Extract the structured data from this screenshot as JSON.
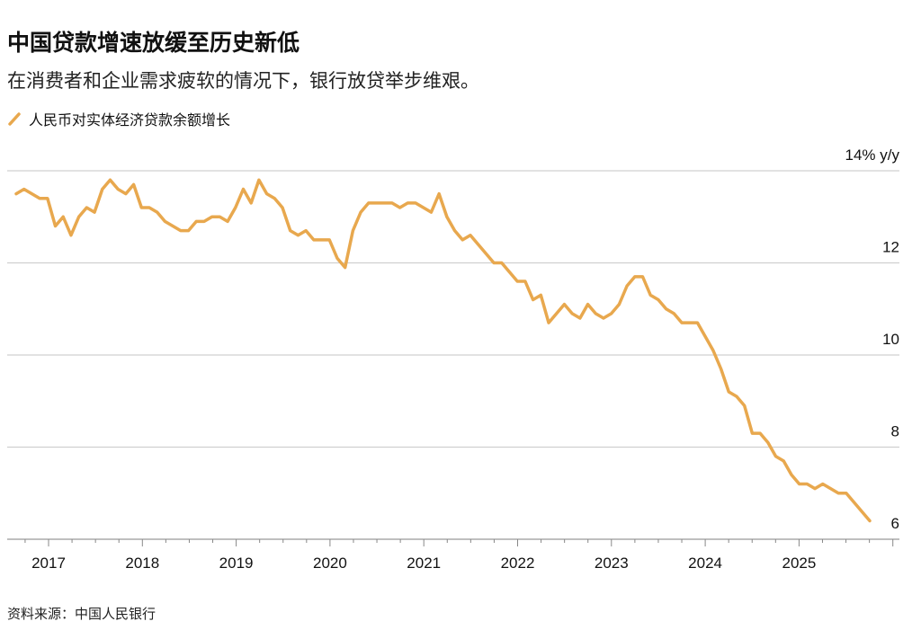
{
  "header": {
    "title": "中国贷款增速放缓至历史新低",
    "subtitle": "在消费者和企业需求疲软的情况下，银行放贷举步维艰。"
  },
  "source": "资料来源：中国人民银行",
  "chart_data": {
    "type": "line",
    "title": "中国贷款增速放缓至历史新低",
    "ylabel": "% y/y",
    "ylim": [
      6,
      14
    ],
    "yticks": [
      {
        "v": 14,
        "label": "14% y/y"
      },
      {
        "v": 12,
        "label": "12"
      },
      {
        "v": 10,
        "label": "10"
      },
      {
        "v": 8,
        "label": "8"
      },
      {
        "v": 6,
        "label": "6"
      }
    ],
    "xticks": [
      "2017",
      "2018",
      "2019",
      "2020",
      "2021",
      "2022",
      "2023",
      "2024",
      "2025"
    ],
    "x_start": "2016-09",
    "x_end": "2025-10",
    "frequency": "monthly",
    "grid": true,
    "legend_position": "top-left",
    "series": [
      {
        "name": "人民币对实体经济贷款余额增长",
        "color": "#E8A84E",
        "values": [
          13.5,
          13.6,
          13.5,
          13.4,
          13.4,
          12.8,
          13.0,
          12.6,
          13.0,
          13.2,
          13.1,
          13.6,
          13.8,
          13.6,
          13.5,
          13.7,
          13.2,
          13.2,
          13.1,
          12.9,
          12.8,
          12.7,
          12.7,
          12.9,
          12.9,
          13.0,
          13.0,
          12.9,
          13.2,
          13.6,
          13.3,
          13.8,
          13.5,
          13.4,
          13.2,
          12.7,
          12.6,
          12.7,
          12.5,
          12.5,
          12.5,
          12.1,
          11.9,
          12.7,
          13.1,
          13.3,
          13.3,
          13.3,
          13.3,
          13.2,
          13.3,
          13.3,
          13.2,
          13.1,
          13.5,
          13.0,
          12.7,
          12.5,
          12.6,
          12.4,
          12.2,
          12.0,
          12.0,
          11.8,
          11.6,
          11.6,
          11.2,
          11.3,
          10.7,
          10.9,
          11.1,
          10.9,
          10.8,
          11.1,
          10.9,
          10.8,
          10.9,
          11.1,
          11.5,
          11.7,
          11.7,
          11.3,
          11.2,
          11.0,
          10.9,
          10.7,
          10.7,
          10.7,
          10.4,
          10.1,
          9.7,
          9.2,
          9.1,
          8.9,
          8.3,
          8.3,
          8.1,
          7.8,
          7.7,
          7.4,
          7.2,
          7.2,
          7.1,
          7.2,
          7.1,
          7.0,
          7.0,
          6.8,
          6.6,
          6.4
        ]
      }
    ]
  }
}
